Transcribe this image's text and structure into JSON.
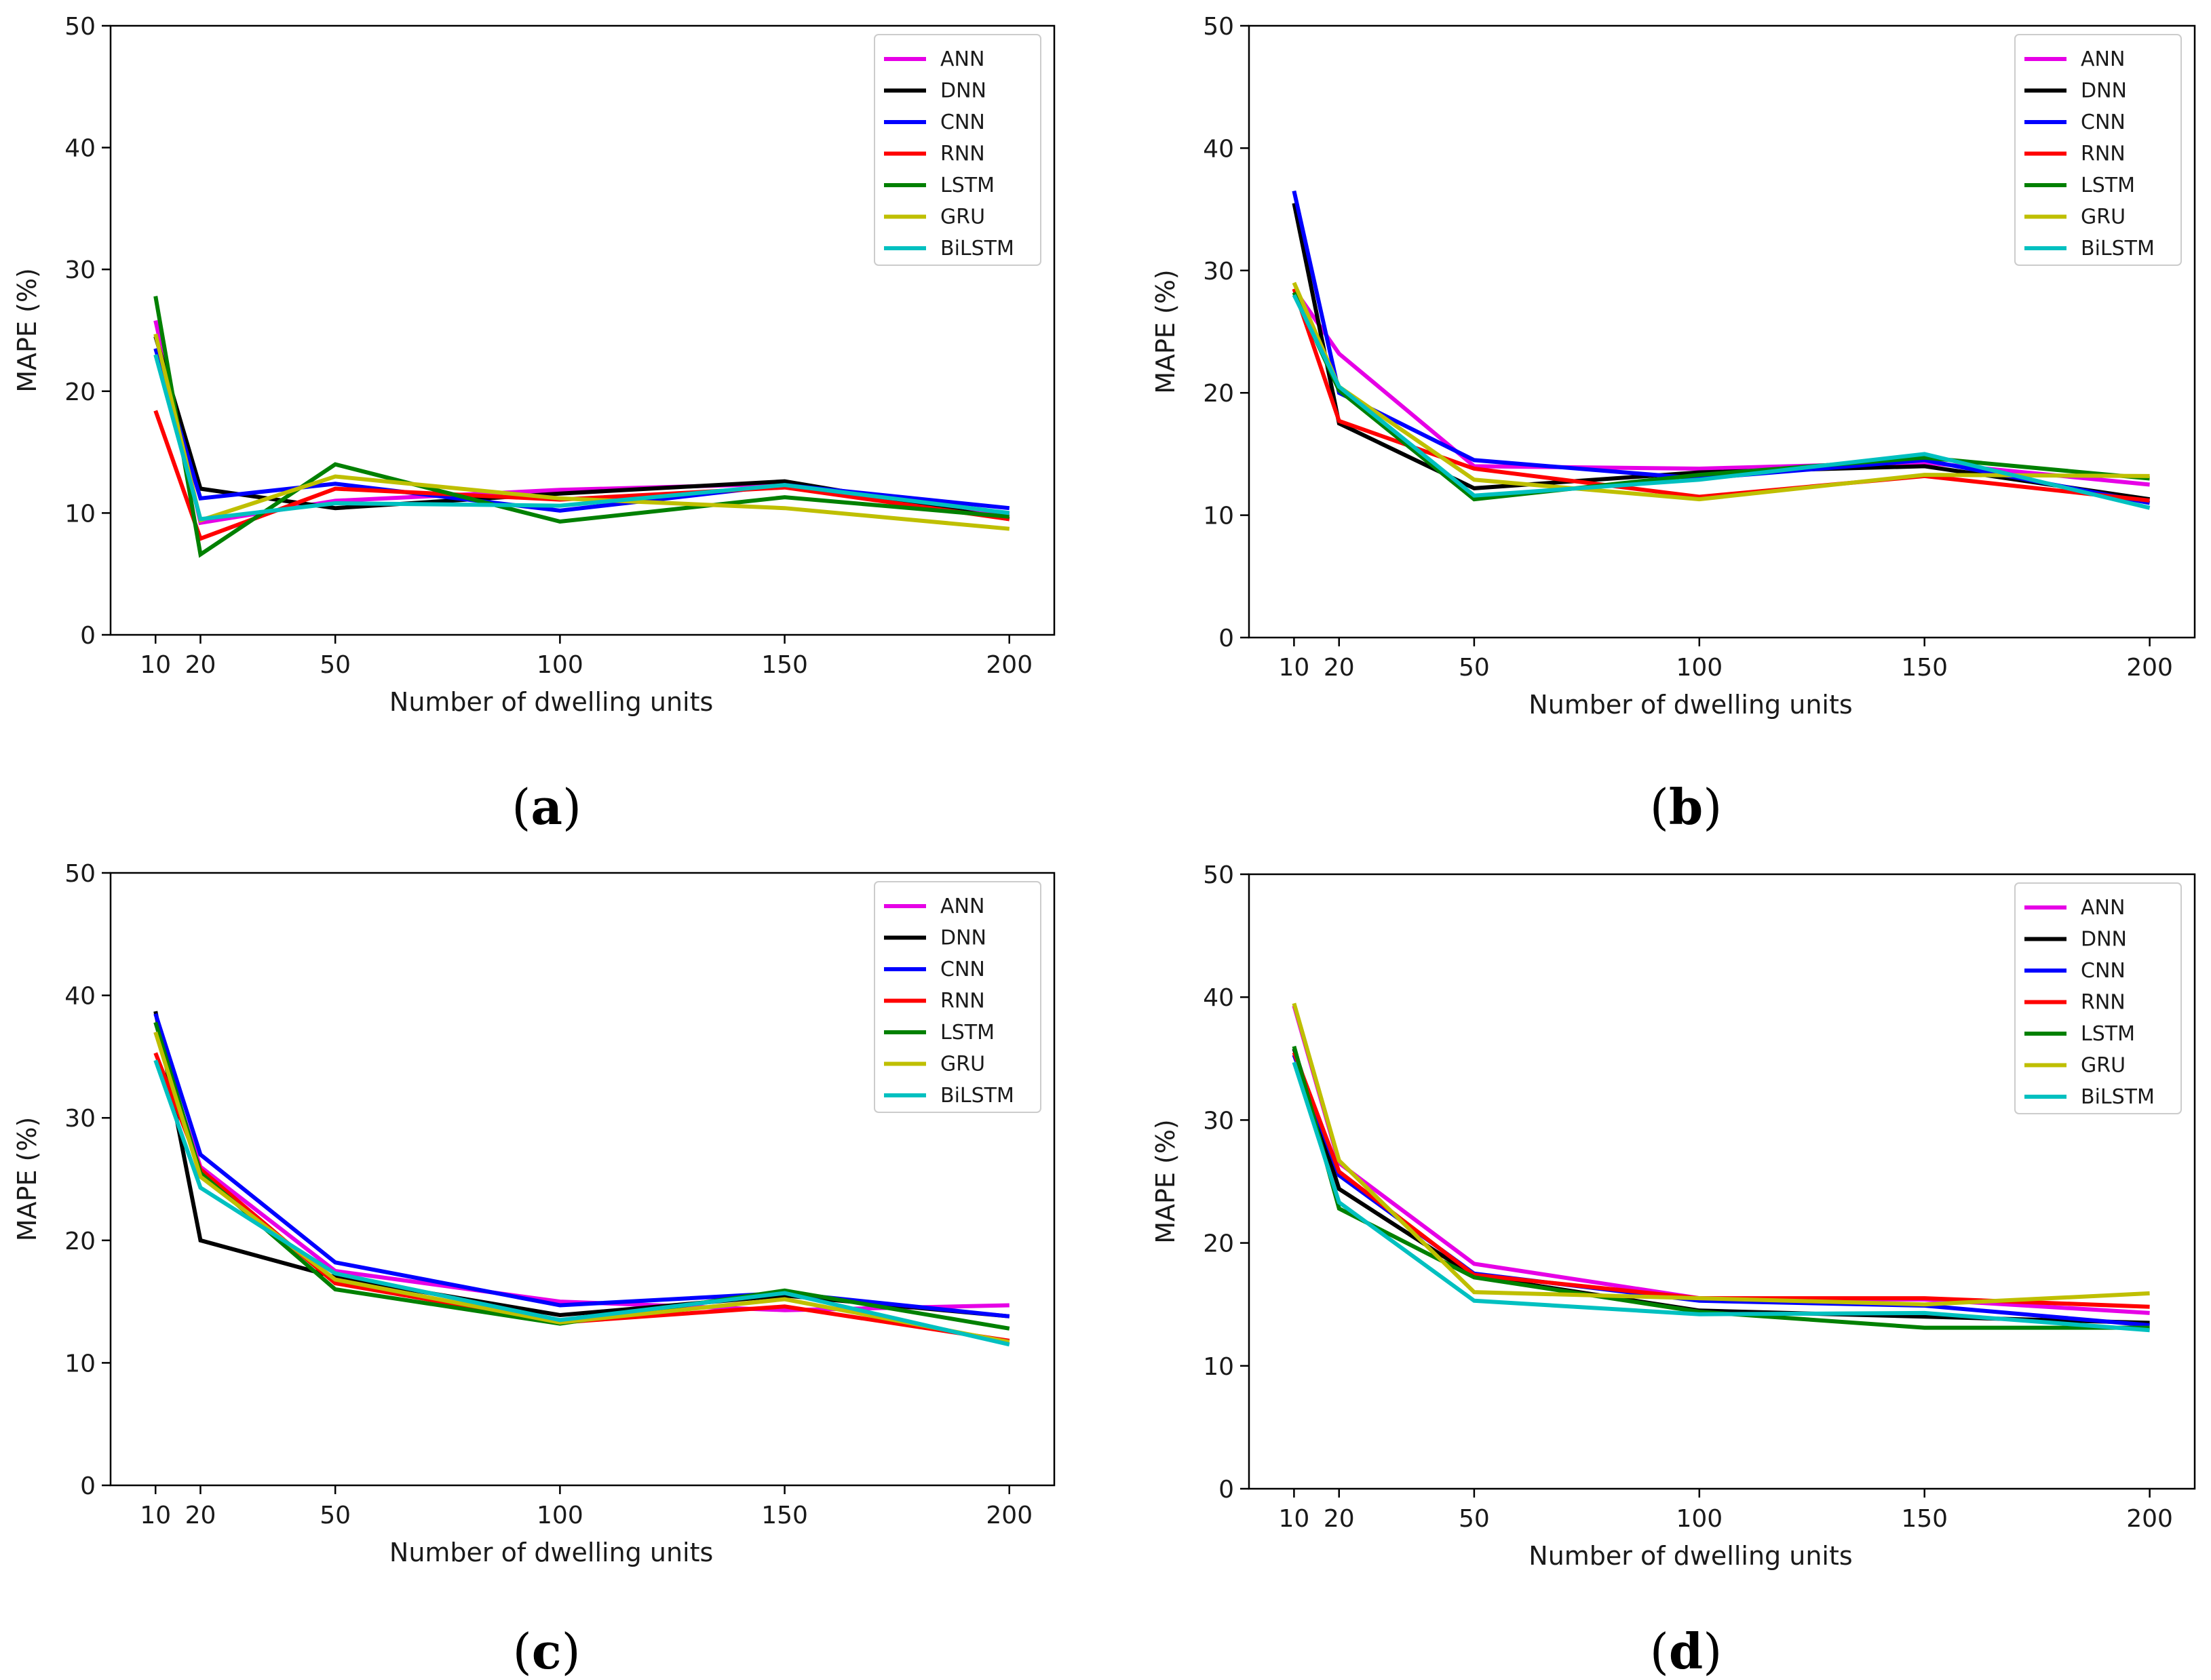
{
  "xlabel": "Number of dwelling units",
  "ylabel": "MAPE (%)",
  "series_colors": {
    "ANN": "#e600e6",
    "DNN": "#000000",
    "CNN": "#0000ff",
    "RNN": "#ff0000",
    "LSTM": "#008000",
    "GRU": "#bfbf00",
    "BiLSTM": "#00c0c0"
  },
  "chart_data": [
    {
      "type": "line",
      "caption_open": "(",
      "caption_letter": "a",
      "caption_close": ")",
      "x": [
        10,
        20,
        50,
        100,
        150,
        200
      ],
      "x_ticks": [
        "10",
        "20",
        "50",
        "100",
        "150",
        "200"
      ],
      "y_ticks": [
        "0",
        "10",
        "20",
        "30",
        "40",
        "50"
      ],
      "xlim": [
        0,
        210
      ],
      "ylim": [
        0,
        50
      ],
      "legend_position": "top-right",
      "series": [
        {
          "name": "ANN",
          "values": [
            25.8,
            9.2,
            11.0,
            11.9,
            12.4,
            9.9
          ]
        },
        {
          "name": "DNN",
          "values": [
            24.5,
            12.0,
            10.4,
            11.6,
            12.6,
            9.5
          ]
        },
        {
          "name": "CNN",
          "values": [
            23.5,
            11.2,
            12.4,
            10.2,
            12.3,
            10.4
          ]
        },
        {
          "name": "RNN",
          "values": [
            18.4,
            7.9,
            12.0,
            11.1,
            12.1,
            9.5
          ]
        },
        {
          "name": "LSTM",
          "values": [
            27.8,
            6.6,
            14.0,
            9.3,
            11.3,
            9.7
          ]
        },
        {
          "name": "GRU",
          "values": [
            24.7,
            9.4,
            13.0,
            11.2,
            10.4,
            8.7
          ]
        },
        {
          "name": "BiLSTM",
          "values": [
            23.0,
            9.5,
            10.8,
            10.6,
            12.3,
            10.0
          ]
        }
      ]
    },
    {
      "type": "line",
      "caption_open": "(",
      "caption_letter": "b",
      "caption_close": ")",
      "x": [
        10,
        20,
        50,
        100,
        150,
        200
      ],
      "x_ticks": [
        "10",
        "20",
        "50",
        "100",
        "150",
        "200"
      ],
      "y_ticks": [
        "0",
        "10",
        "20",
        "30",
        "40",
        "50"
      ],
      "xlim": [
        0,
        210
      ],
      "ylim": [
        0,
        50
      ],
      "legend_position": "top-right",
      "series": [
        {
          "name": "ANN",
          "values": [
            28.5,
            23.2,
            14.0,
            13.8,
            14.3,
            12.5
          ]
        },
        {
          "name": "DNN",
          "values": [
            35.5,
            17.5,
            12.2,
            13.5,
            14.0,
            11.3
          ]
        },
        {
          "name": "CNN",
          "values": [
            36.5,
            20.0,
            14.5,
            13.0,
            14.5,
            11.0
          ]
        },
        {
          "name": "RNN",
          "values": [
            28.5,
            17.7,
            13.8,
            11.5,
            13.2,
            11.2
          ]
        },
        {
          "name": "LSTM",
          "values": [
            28.2,
            20.2,
            11.3,
            13.3,
            14.7,
            13.0
          ]
        },
        {
          "name": "GRU",
          "values": [
            29.0,
            20.5,
            12.9,
            11.3,
            13.3,
            13.2
          ]
        },
        {
          "name": "BiLSTM",
          "values": [
            28.0,
            20.5,
            11.6,
            12.9,
            15.0,
            10.6
          ]
        }
      ]
    },
    {
      "type": "line",
      "caption_open": "(",
      "caption_letter": "c",
      "caption_close": ")",
      "x": [
        10,
        20,
        50,
        100,
        150,
        200
      ],
      "x_ticks": [
        "10",
        "20",
        "50",
        "100",
        "150",
        "200"
      ],
      "y_ticks": [
        "0",
        "10",
        "20",
        "30",
        "40",
        "50"
      ],
      "xlim": [
        0,
        210
      ],
      "ylim": [
        0,
        50
      ],
      "legend_position": "top-right",
      "series": [
        {
          "name": "ANN",
          "values": [
            37.0,
            26.0,
            17.5,
            15.0,
            14.3,
            14.7
          ]
        },
        {
          "name": "DNN",
          "values": [
            38.7,
            20.0,
            17.0,
            13.9,
            15.5,
            13.8
          ]
        },
        {
          "name": "CNN",
          "values": [
            38.5,
            27.0,
            18.2,
            14.7,
            15.7,
            13.8
          ]
        },
        {
          "name": "RNN",
          "values": [
            35.3,
            25.8,
            16.5,
            13.3,
            14.6,
            11.8
          ]
        },
        {
          "name": "LSTM",
          "values": [
            37.8,
            25.5,
            16.0,
            13.2,
            15.9,
            12.8
          ]
        },
        {
          "name": "GRU",
          "values": [
            37.0,
            25.2,
            16.8,
            13.3,
            15.2,
            11.7
          ]
        },
        {
          "name": "BiLSTM",
          "values": [
            34.7,
            24.3,
            17.3,
            13.5,
            15.7,
            11.5
          ]
        }
      ]
    },
    {
      "type": "line",
      "caption_open": "(",
      "caption_letter": "d",
      "caption_close": ")",
      "x": [
        10,
        20,
        50,
        100,
        150,
        200
      ],
      "x_ticks": [
        "10",
        "20",
        "50",
        "100",
        "150",
        "200"
      ],
      "y_ticks": [
        "0",
        "10",
        "20",
        "30",
        "40",
        "50"
      ],
      "xlim": [
        0,
        210
      ],
      "ylim": [
        0,
        50
      ],
      "legend_position": "top-right",
      "series": [
        {
          "name": "ANN",
          "values": [
            39.3,
            26.5,
            18.3,
            15.5,
            15.4,
            14.3
          ]
        },
        {
          "name": "DNN",
          "values": [
            35.8,
            24.4,
            17.3,
            14.5,
            14.0,
            13.5
          ]
        },
        {
          "name": "CNN",
          "values": [
            35.3,
            25.5,
            17.5,
            15.3,
            14.9,
            13.3
          ]
        },
        {
          "name": "RNN",
          "values": [
            35.5,
            25.8,
            17.4,
            15.5,
            15.5,
            14.8
          ]
        },
        {
          "name": "LSTM",
          "values": [
            36.0,
            22.8,
            17.2,
            14.4,
            13.1,
            13.1
          ]
        },
        {
          "name": "GRU",
          "values": [
            39.5,
            26.7,
            16.0,
            15.5,
            15.0,
            15.9
          ]
        },
        {
          "name": "BiLSTM",
          "values": [
            34.7,
            23.3,
            15.3,
            14.2,
            14.3,
            12.9
          ]
        }
      ]
    }
  ]
}
